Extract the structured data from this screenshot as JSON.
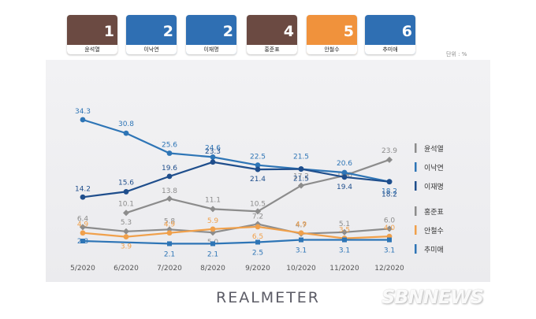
{
  "candidates": [
    {
      "name": "윤석열",
      "rank": "1",
      "bg": "#6b4a42"
    },
    {
      "name": "이낙연",
      "rank": "2",
      "bg": "#2f6fb3"
    },
    {
      "name": "이재명",
      "rank": "2",
      "bg": "#2f6fb3"
    },
    {
      "name": "홍준표",
      "rank": "4",
      "bg": "#6b4a42"
    },
    {
      "name": "안철수",
      "rank": "5",
      "bg": "#f0923c"
    },
    {
      "name": "추미애",
      "rank": "6",
      "bg": "#2f6fb3"
    }
  ],
  "unit": "단위 : %",
  "brand": "REALMETER",
  "watermark": "SBNNEWS",
  "chart_data": {
    "type": "line",
    "categories": [
      "5/2020",
      "6/2020",
      "7/2020",
      "8/2020",
      "9/2020",
      "10/2020",
      "11/2020",
      "12/2020"
    ],
    "grid": false,
    "legend_position": "right",
    "series": [
      {
        "name": "윤석열",
        "color": "#8c8c8c",
        "values": [
          null,
          10.1,
          13.8,
          11.1,
          10.5,
          17.2,
          19.8,
          23.9
        ]
      },
      {
        "name": "이낙연",
        "color": "#2e75b6",
        "values": [
          34.3,
          30.8,
          25.6,
          24.6,
          22.5,
          21.5,
          20.6,
          18.2
        ]
      },
      {
        "name": "이재명",
        "color": "#1f4e8c",
        "values": [
          14.2,
          15.6,
          19.6,
          23.3,
          21.4,
          21.5,
          19.4,
          18.2
        ]
      },
      {
        "name": "홍준표",
        "color": "#8c8c8c",
        "values": [
          6.4,
          5.3,
          5.8,
          5.0,
          7.2,
          4.7,
          5.1,
          6.0
        ]
      },
      {
        "name": "안철수",
        "color": "#f0a04b",
        "values": [
          4.9,
          3.9,
          4.9,
          5.9,
          6.5,
          4.9,
          3.5,
          4.0
        ]
      },
      {
        "name": "추미애",
        "color": "#2e75b6",
        "values": [
          2.8,
          null,
          2.1,
          2.1,
          2.5,
          3.1,
          3.1,
          3.1
        ]
      }
    ]
  }
}
